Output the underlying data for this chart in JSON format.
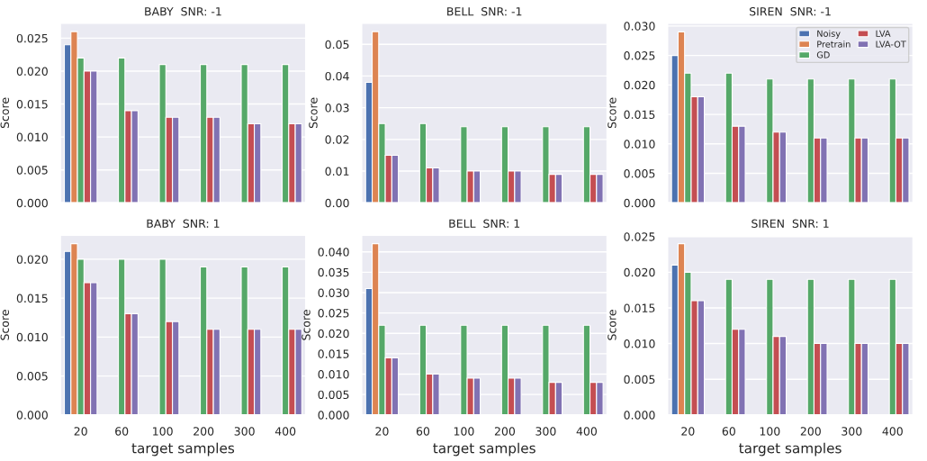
{
  "chart_data": [
    {
      "type": "bar",
      "title": "BABY  SNR: -1",
      "ylabel": "Score",
      "categories": [
        "20",
        "60",
        "100",
        "200",
        "300",
        "400"
      ],
      "ylim": [
        0,
        0.0273
      ],
      "yticks": [
        {
          "value": 0,
          "label": "0.000"
        },
        {
          "value": 0.005,
          "label": "0.005"
        },
        {
          "value": 0.01,
          "label": "0.010"
        },
        {
          "value": 0.015,
          "label": "0.015"
        },
        {
          "value": 0.02,
          "label": "0.020"
        },
        {
          "value": 0.025,
          "label": "0.025"
        }
      ],
      "grid": "y",
      "tick_labels": "y",
      "series": [
        {
          "color": "#4c72b0",
          "values": [
            0.024,
            null,
            null,
            null,
            null,
            null
          ]
        },
        {
          "color": "#dd8452",
          "values": [
            0.026,
            null,
            null,
            null,
            null,
            null
          ]
        },
        {
          "color": "#55a868",
          "values": [
            0.022,
            0.022,
            0.021,
            0.021,
            0.021,
            0.021
          ]
        },
        {
          "color": "#c44e52",
          "values": [
            0.02,
            0.014,
            0.013,
            0.013,
            0.012,
            0.012
          ]
        },
        {
          "color": "#8172b3",
          "values": [
            0.02,
            0.014,
            0.013,
            0.013,
            0.012,
            0.012
          ]
        }
      ]
    },
    {
      "type": "bar",
      "title": "BELL  SNR: -1",
      "ylabel": "Score",
      "categories": [
        "20",
        "60",
        "100",
        "200",
        "300",
        "400"
      ],
      "ylim": [
        0,
        0.0567
      ],
      "yticks": [
        {
          "value": 0,
          "label": "0.00"
        },
        {
          "value": 0.01,
          "label": "0.01"
        },
        {
          "value": 0.02,
          "label": "0.02"
        },
        {
          "value": 0.03,
          "label": "0.03"
        },
        {
          "value": 0.04,
          "label": "0.04"
        },
        {
          "value": 0.05,
          "label": "0.05"
        }
      ],
      "grid": "y",
      "tick_labels": "y",
      "series": [
        {
          "color": "#4c72b0",
          "values": [
            0.038,
            null,
            null,
            null,
            null,
            null
          ]
        },
        {
          "color": "#dd8452",
          "values": [
            0.054,
            null,
            null,
            null,
            null,
            null
          ]
        },
        {
          "color": "#55a868",
          "values": [
            0.025,
            0.025,
            0.024,
            0.024,
            0.024,
            0.024
          ]
        },
        {
          "color": "#c44e52",
          "values": [
            0.015,
            0.011,
            0.01,
            0.01,
            0.009,
            0.009
          ]
        },
        {
          "color": "#8172b3",
          "values": [
            0.015,
            0.011,
            0.01,
            0.01,
            0.009,
            0.009
          ]
        }
      ]
    },
    {
      "type": "bar",
      "title": "SIREN  SNR: -1",
      "ylabel": "Score",
      "categories": [
        "20",
        "60",
        "100",
        "200",
        "300",
        "400"
      ],
      "ylim": [
        0,
        0.0305
      ],
      "yticks": [
        {
          "value": 0,
          "label": "0.000"
        },
        {
          "value": 0.005,
          "label": "0.005"
        },
        {
          "value": 0.01,
          "label": "0.010"
        },
        {
          "value": 0.015,
          "label": "0.015"
        },
        {
          "value": 0.02,
          "label": "0.020"
        },
        {
          "value": 0.025,
          "label": "0.025"
        },
        {
          "value": 0.03,
          "label": "0.030"
        }
      ],
      "grid": "y",
      "tick_labels": "y",
      "legend": "top right",
      "series": [
        {
          "name": "Noisy",
          "color": "#4c72b0",
          "values": [
            0.025,
            null,
            null,
            null,
            null,
            null
          ]
        },
        {
          "name": "Pretrain",
          "color": "#dd8452",
          "values": [
            0.029,
            null,
            null,
            null,
            null,
            null
          ]
        },
        {
          "name": "GD",
          "color": "#55a868",
          "values": [
            0.022,
            0.022,
            0.021,
            0.021,
            0.021,
            0.021
          ]
        },
        {
          "name": "LVA",
          "color": "#c44e52",
          "values": [
            0.018,
            0.013,
            0.012,
            0.011,
            0.011,
            0.011
          ]
        },
        {
          "name": "LVA-OT",
          "color": "#8172b3",
          "values": [
            0.018,
            0.013,
            0.012,
            0.011,
            0.011,
            0.011
          ]
        }
      ]
    },
    {
      "type": "bar",
      "title": "BABY  SNR: 1",
      "ylabel": "Score",
      "xlabel": "target samples",
      "categories": [
        "20",
        "60",
        "100",
        "200",
        "300",
        "400"
      ],
      "ylim": [
        0,
        0.0231
      ],
      "yticks": [
        {
          "value": 0,
          "label": "0.000"
        },
        {
          "value": 0.005,
          "label": "0.005"
        },
        {
          "value": 0.01,
          "label": "0.010"
        },
        {
          "value": 0.015,
          "label": "0.015"
        },
        {
          "value": 0.02,
          "label": "0.020"
        }
      ],
      "grid": "y",
      "series": [
        {
          "color": "#4c72b0",
          "values": [
            0.021,
            null,
            null,
            null,
            null,
            null
          ]
        },
        {
          "color": "#dd8452",
          "values": [
            0.022,
            null,
            null,
            null,
            null,
            null
          ]
        },
        {
          "color": "#55a868",
          "values": [
            0.02,
            0.02,
            0.02,
            0.019,
            0.019,
            0.019
          ]
        },
        {
          "color": "#c44e52",
          "values": [
            0.017,
            0.013,
            0.012,
            0.011,
            0.011,
            0.011
          ]
        },
        {
          "color": "#8172b3",
          "values": [
            0.017,
            0.013,
            0.012,
            0.011,
            0.011,
            0.011
          ]
        }
      ]
    },
    {
      "type": "bar",
      "title": "BELL  SNR: 1",
      "ylabel": "Score",
      "xlabel": "target samples",
      "categories": [
        "20",
        "60",
        "100",
        "200",
        "300",
        "400"
      ],
      "ylim": [
        0,
        0.0441
      ],
      "yticks": [
        {
          "value": 0,
          "label": "0.000"
        },
        {
          "value": 0.005,
          "label": "0.005"
        },
        {
          "value": 0.01,
          "label": "0.010"
        },
        {
          "value": 0.015,
          "label": "0.015"
        },
        {
          "value": 0.02,
          "label": "0.020"
        },
        {
          "value": 0.025,
          "label": "0.025"
        },
        {
          "value": 0.03,
          "label": "0.030"
        },
        {
          "value": 0.035,
          "label": "0.035"
        },
        {
          "value": 0.04,
          "label": "0.040"
        }
      ],
      "grid": "y",
      "series": [
        {
          "color": "#4c72b0",
          "values": [
            0.031,
            null,
            null,
            null,
            null,
            null
          ]
        },
        {
          "color": "#dd8452",
          "values": [
            0.042,
            null,
            null,
            null,
            null,
            null
          ]
        },
        {
          "color": "#55a868",
          "values": [
            0.022,
            0.022,
            0.022,
            0.022,
            0.022,
            0.022
          ]
        },
        {
          "color": "#c44e52",
          "values": [
            0.014,
            0.01,
            0.009,
            0.009,
            0.008,
            0.008
          ]
        },
        {
          "color": "#8172b3",
          "values": [
            0.014,
            0.01,
            0.009,
            0.009,
            0.008,
            0.008
          ]
        }
      ]
    },
    {
      "type": "bar",
      "title": "SIREN  SNR: 1",
      "ylabel": "Score",
      "xlabel": "target samples",
      "categories": [
        "20",
        "60",
        "100",
        "200",
        "300",
        "400"
      ],
      "ylim": [
        0,
        0.0252
      ],
      "yticks": [
        {
          "value": 0,
          "label": "0.000"
        },
        {
          "value": 0.005,
          "label": "0.005"
        },
        {
          "value": 0.01,
          "label": "0.010"
        },
        {
          "value": 0.015,
          "label": "0.015"
        },
        {
          "value": 0.02,
          "label": "0.020"
        },
        {
          "value": 0.025,
          "label": "0.025"
        }
      ],
      "grid": "y",
      "series": [
        {
          "color": "#4c72b0",
          "values": [
            0.021,
            null,
            null,
            null,
            null,
            null
          ]
        },
        {
          "color": "#dd8452",
          "values": [
            0.024,
            null,
            null,
            null,
            null,
            null
          ]
        },
        {
          "color": "#55a868",
          "values": [
            0.02,
            0.019,
            0.019,
            0.019,
            0.019,
            0.019
          ]
        },
        {
          "color": "#c44e52",
          "values": [
            0.016,
            0.012,
            0.011,
            0.01,
            0.01,
            0.01
          ]
        },
        {
          "color": "#8172b3",
          "values": [
            0.016,
            0.012,
            0.011,
            0.01,
            0.01,
            0.01
          ]
        }
      ]
    }
  ]
}
